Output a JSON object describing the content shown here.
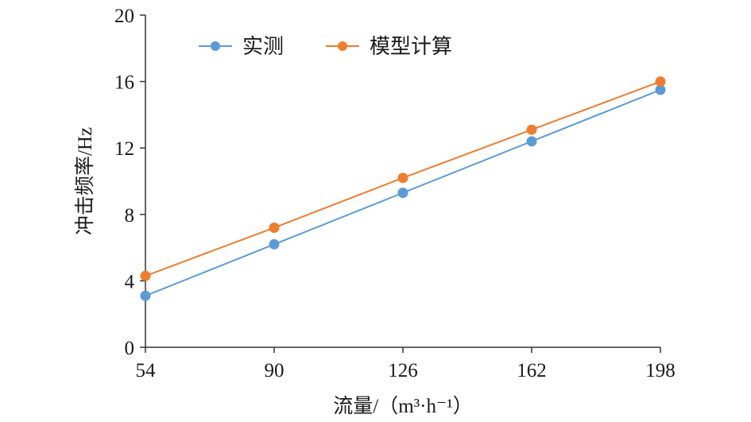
{
  "chart_data": {
    "type": "line",
    "x": [
      54,
      90,
      126,
      162,
      198
    ],
    "series": [
      {
        "name": "实测",
        "color": "#5b9bd5",
        "values": [
          3.1,
          6.2,
          9.3,
          12.4,
          15.5
        ]
      },
      {
        "name": "模型计算",
        "color": "#ed7d31",
        "values": [
          4.3,
          7.2,
          10.2,
          13.1,
          16.0
        ]
      }
    ],
    "xticks": [
      "54",
      "90",
      "126",
      "162",
      "198"
    ],
    "yticks": [
      "0",
      "4",
      "8",
      "12",
      "16",
      "20"
    ],
    "xlim": [
      54,
      198
    ],
    "ylim": [
      0,
      20
    ],
    "xlabel": "流量/（m³·h⁻¹）",
    "ylabel": "冲击频率/Hz",
    "legend_position": "top-left",
    "grid": false
  }
}
